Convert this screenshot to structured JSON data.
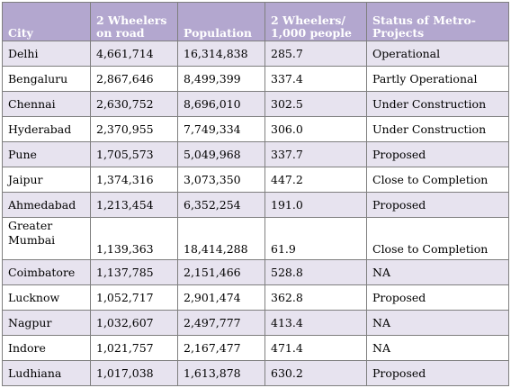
{
  "table": {
    "headers": {
      "city": "City",
      "two_wheelers": "2 Wheelers on road",
      "population": "Population",
      "per_thousand": "2 Wheelers/ 1,000 people",
      "status": "Status of Metro-Projects"
    },
    "rows": [
      {
        "city": "Delhi",
        "two_wheelers": "4,661,714",
        "population": "16,314,838",
        "per_thousand": "285.7",
        "status": "Operational"
      },
      {
        "city": "Bengaluru",
        "two_wheelers": "2,867,646",
        "population": "8,499,399",
        "per_thousand": "337.4",
        "status": "Partly Operational"
      },
      {
        "city": "Chennai",
        "two_wheelers": "2,630,752",
        "population": "8,696,010",
        "per_thousand": "302.5",
        "status": "Under Construction"
      },
      {
        "city": "Hyderabad",
        "two_wheelers": "2,370,955",
        "population": "7,749,334",
        "per_thousand": "306.0",
        "status": "Under Construction"
      },
      {
        "city": "Pune",
        "two_wheelers": "1,705,573",
        "population": "5,049,968",
        "per_thousand": "337.7",
        "status": "Proposed"
      },
      {
        "city": "Jaipur",
        "two_wheelers": "1,374,316",
        "population": "3,073,350",
        "per_thousand": "447.2",
        "status": "Close to Completion"
      },
      {
        "city": "Ahmedabad",
        "two_wheelers": "1,213,454",
        "population": "6,352,254",
        "per_thousand": "191.0",
        "status": "Proposed"
      },
      {
        "city": "Greater Mumbai",
        "two_wheelers": "1,139,363",
        "population": "18,414,288",
        "per_thousand": "61.9",
        "status": "Close to Completion"
      },
      {
        "city": "Coimbatore",
        "two_wheelers": "1,137,785",
        "population": "2,151,466",
        "per_thousand": "528.8",
        "status": "NA"
      },
      {
        "city": "Lucknow",
        "two_wheelers": "1,052,717",
        "population": "2,901,474",
        "per_thousand": "362.8",
        "status": "Proposed"
      },
      {
        "city": "Nagpur",
        "two_wheelers": "1,032,607",
        "population": "2,497,777",
        "per_thousand": "413.4",
        "status": "NA"
      },
      {
        "city": "Indore",
        "two_wheelers": "1,021,757",
        "population": "2,167,477",
        "per_thousand": "471.4",
        "status": "NA"
      },
      {
        "city": "Ludhiana",
        "two_wheelers": "1,017,038",
        "population": "1,613,878",
        "per_thousand": "630.2",
        "status": "Proposed"
      }
    ]
  },
  "colors": {
    "header_bg": "#b3a7cf",
    "header_text": "#ffffff",
    "odd_row_bg": "#e7e3ef",
    "even_row_bg": "#ffffff",
    "border": "#7f7f7f"
  }
}
